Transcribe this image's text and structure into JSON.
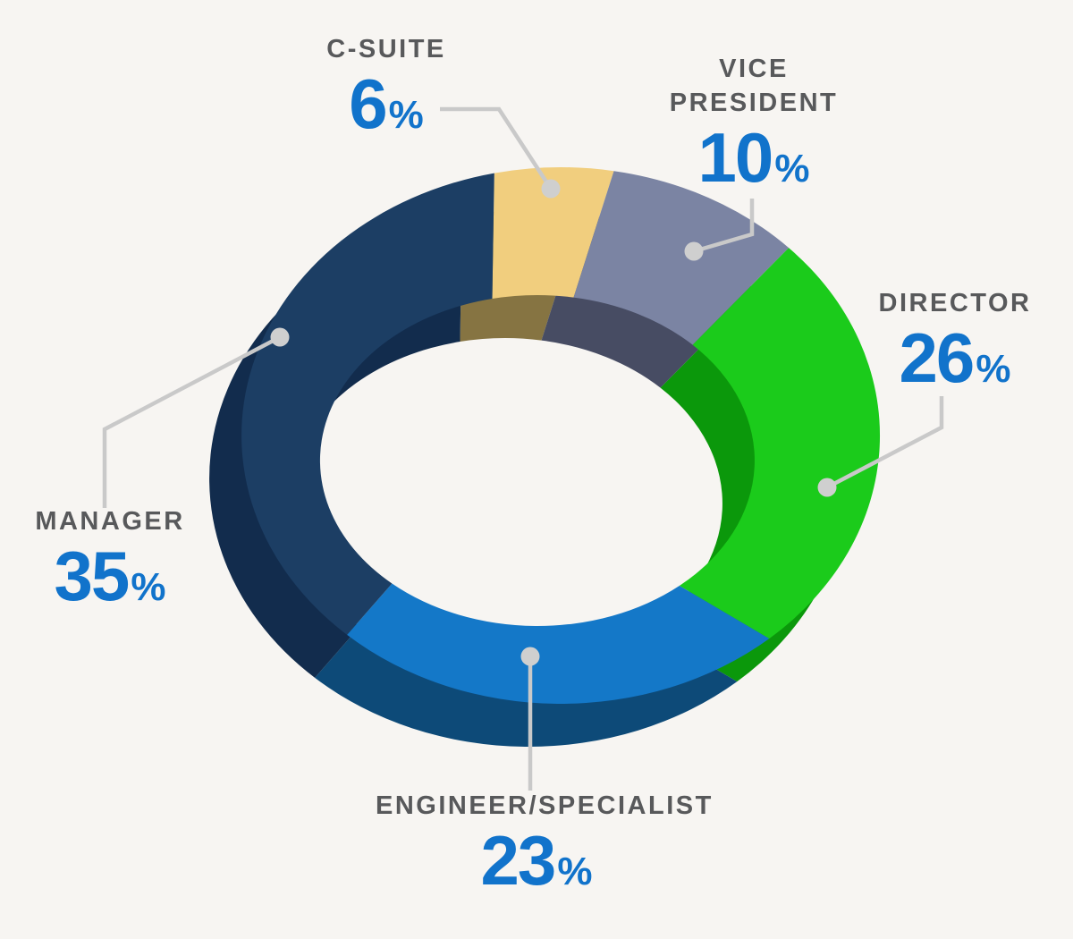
{
  "style": {
    "background": "#f7f5f2",
    "category_label_color": "#58595b",
    "value_label_color": "#1173cb",
    "leader_line_color": "#c9c9c9",
    "leader_dot_color": "#cfcfcf"
  },
  "chart_data": {
    "type": "pie",
    "subtype": "3d-donut",
    "title": "",
    "units": "%",
    "order": "clockwise-from-top",
    "start_angle_deg": -12,
    "segments": [
      {
        "label": "C-SUITE",
        "value": 6,
        "color": "#f1ce7e",
        "depth_color": "#867442"
      },
      {
        "label": "VICE PRESIDENT",
        "value": 10,
        "color": "#7b84a3",
        "depth_color": "#474c63"
      },
      {
        "label": "DIRECTOR",
        "value": 26,
        "color": "#1bcb1b",
        "depth_color": "#0b980b"
      },
      {
        "label": "ENGINEER/SPECIALIST",
        "value": 23,
        "color": "#1478c8",
        "depth_color": "#0d4a78"
      },
      {
        "label": "MANAGER",
        "value": 35,
        "color": "#1c3e64",
        "depth_color": "#122c4d"
      }
    ]
  },
  "callouts": {
    "c_suite": {
      "line1": "C-SUITE",
      "pct": "6",
      "suffix": "%"
    },
    "vice_president": {
      "line1": "VICE",
      "line2": "PRESIDENT",
      "pct": "10",
      "suffix": "%"
    },
    "director": {
      "line1": "DIRECTOR",
      "pct": "26",
      "suffix": "%"
    },
    "manager": {
      "line1": "MANAGER",
      "pct": "35",
      "suffix": "%"
    },
    "engineer_specialist": {
      "line1": "ENGINEER/SPECIALIST",
      "pct": "23",
      "suffix": "%"
    }
  }
}
